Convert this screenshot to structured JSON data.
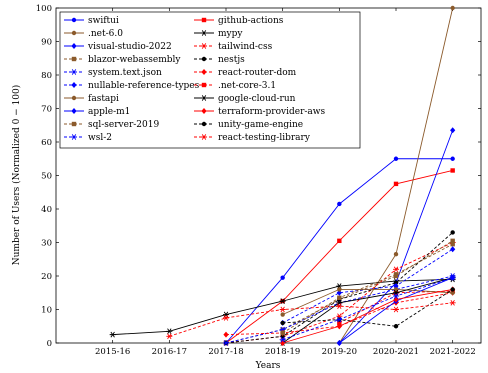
{
  "chart_data": {
    "type": "line",
    "title": "",
    "xlabel": "Years",
    "ylabel": "Number of Users (Normalized 0 − 100)",
    "categories": [
      "2015-16",
      "2016-17",
      "2017-18",
      "2018-19",
      "2019-20",
      "2020-2021",
      "2021-2022"
    ],
    "ylim": [
      0,
      100
    ],
    "yticks": [
      0,
      10,
      20,
      30,
      40,
      50,
      60,
      70,
      80,
      90,
      100
    ],
    "grid": false,
    "legend_position": "top-left",
    "series": [
      {
        "name": "swiftui",
        "color": "#0000ff",
        "marker": "circle",
        "dash": "solid",
        "values": [
          null,
          null,
          0,
          19.5,
          41.5,
          55,
          55
        ]
      },
      {
        "name": "github-actions",
        "color": "#ff0000",
        "marker": "square",
        "dash": "solid",
        "values": [
          null,
          null,
          0,
          12.5,
          30.5,
          47.5,
          51.5
        ]
      },
      {
        "name": ".net-6.0",
        "color": "#8b5a2b",
        "marker": "circle",
        "dash": "solid",
        "values": [
          null,
          null,
          null,
          null,
          0,
          26.5,
          100
        ]
      },
      {
        "name": "mypy",
        "color": "#000000",
        "marker": "star",
        "dash": "solid",
        "values": [
          2.5,
          3.5,
          8.5,
          12.5,
          17,
          18.5,
          19
        ]
      },
      {
        "name": "visual-studio-2022",
        "color": "#0000ff",
        "marker": "diamond",
        "dash": "solid",
        "values": [
          null,
          null,
          null,
          null,
          0,
          18,
          63.5
        ]
      },
      {
        "name": "tailwind-css",
        "color": "#ff0000",
        "marker": "star",
        "dash": "dashed",
        "values": [
          null,
          null,
          0,
          2,
          8,
          22,
          30
        ]
      },
      {
        "name": "blazor-webassembly",
        "color": "#8b5a2b",
        "marker": "square",
        "dash": "dashed",
        "values": [
          null,
          null,
          0,
          4,
          13,
          20,
          30.5
        ]
      },
      {
        "name": "nestjs",
        "color": "#000000",
        "marker": "circle",
        "dash": "dashed",
        "values": [
          null,
          null,
          0,
          2,
          13,
          18,
          33
        ]
      },
      {
        "name": "system.text.json",
        "color": "#0000ff",
        "marker": "star",
        "dash": "dashed",
        "values": [
          null,
          null,
          0,
          4,
          12,
          16,
          20
        ]
      },
      {
        "name": "react-router-dom",
        "color": "#ff0000",
        "marker": "diamond",
        "dash": "dashed",
        "values": [
          null,
          null,
          2.5,
          3,
          5,
          12,
          15
        ]
      },
      {
        "name": "nullable-reference-types",
        "color": "#0000ff",
        "marker": "diamond",
        "dash": "dashed",
        "values": [
          null,
          null,
          null,
          6,
          15,
          17,
          28
        ]
      },
      {
        "name": ".net-core-3.1",
        "color": "#ff0000",
        "marker": "square",
        "dash": "dashed",
        "values": [
          null,
          null,
          null,
          null,
          6,
          15,
          15.5
        ]
      },
      {
        "name": "fastapi",
        "color": "#8b5a2b",
        "marker": "circle",
        "dash": "solid",
        "values": [
          null,
          null,
          null,
          8.5,
          16,
          16,
          15
        ]
      },
      {
        "name": "google-cloud-run",
        "color": "#000000",
        "marker": "star",
        "dash": "solid",
        "values": [
          null,
          null,
          null,
          0,
          12,
          15,
          19.5
        ]
      },
      {
        "name": "apple-m1",
        "color": "#0000ff",
        "marker": "diamond",
        "dash": "solid",
        "values": [
          null,
          null,
          null,
          null,
          0,
          12.5,
          19.5
        ]
      },
      {
        "name": "terraform-provider-aws",
        "color": "#ff0000",
        "marker": "diamond",
        "dash": "solid",
        "values": [
          null,
          null,
          null,
          0,
          5,
          13,
          16
        ]
      },
      {
        "name": "sql-server-2019",
        "color": "#8b5a2b",
        "marker": "square",
        "dash": "dashed",
        "values": [
          null,
          null,
          null,
          3,
          13.5,
          20.5,
          29.5
        ]
      },
      {
        "name": "unity-game-engine",
        "color": "#000000",
        "marker": "circle",
        "dash": "dashed",
        "values": [
          null,
          null,
          null,
          6,
          7,
          5,
          16
        ]
      },
      {
        "name": "wsl-2",
        "color": "#0000ff",
        "marker": "star",
        "dash": "dashed",
        "values": [
          null,
          null,
          null,
          1,
          7,
          14,
          19.5
        ]
      },
      {
        "name": "react-testing-library",
        "color": "#ff0000",
        "marker": "star",
        "dash": "dashed",
        "values": [
          null,
          2,
          7.5,
          10,
          11,
          10,
          12
        ]
      }
    ]
  }
}
